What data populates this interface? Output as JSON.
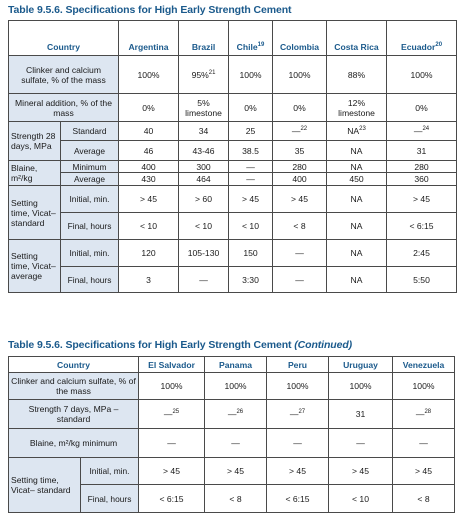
{
  "t1": {
    "title": "Table 9.5.6. Specifications for High Early Strength Cement",
    "country_label": "Country",
    "countries": [
      {
        "name": "Argentina",
        "sup": ""
      },
      {
        "name": "Brazil",
        "sup": ""
      },
      {
        "name": "Chile",
        "sup": "19"
      },
      {
        "name": "Colombia",
        "sup": ""
      },
      {
        "name": "Costa Rica",
        "sup": ""
      },
      {
        "name": "Ecuador",
        "sup": "20"
      }
    ],
    "rows": {
      "clinker": {
        "label": "Clinker and calcium sulfate, % of the mass",
        "values": [
          "100%",
          "95%",
          "100%",
          "100%",
          "88%",
          "100%"
        ],
        "brazil_sup": "21"
      },
      "mineral": {
        "label": "Mineral addition, % of the mass",
        "values": [
          "0%",
          "5% limestone",
          "0%",
          "0%",
          "12% limestone",
          "0%"
        ]
      },
      "strength": {
        "label": "Strength 28 days, MPa",
        "standard": {
          "label": "Standard",
          "values": [
            "40",
            "34",
            "25",
            "—",
            "NA",
            "—"
          ],
          "sups": [
            "",
            "",
            "",
            "22",
            "23",
            "24"
          ]
        },
        "average": {
          "label": "Average",
          "values": [
            "46",
            "43-46",
            "38.5",
            "35",
            "NA",
            "31"
          ]
        }
      },
      "blaine": {
        "label": "Blaine, m²/kg",
        "minimum": {
          "label": "Minimum",
          "values": [
            "400",
            "300",
            "—",
            "280",
            "NA",
            "280"
          ]
        },
        "average": {
          "label": "Average",
          "values": [
            "430",
            "464",
            "—",
            "400",
            "450",
            "360"
          ]
        }
      },
      "vicat_std": {
        "label": "Setting time, Vicat– standard",
        "initial": {
          "label": "Initial, min.",
          "values": [
            "> 45",
            "> 60",
            "> 45",
            "> 45",
            "NA",
            "> 45"
          ]
        },
        "final": {
          "label": "Final, hours",
          "values": [
            "< 10",
            "< 10",
            "< 10",
            "< 8",
            "NA",
            "< 6:15"
          ]
        }
      },
      "vicat_avg": {
        "label": "Setting time, Vicat– average",
        "initial": {
          "label": "Initial, min.",
          "values": [
            "120",
            "105-130",
            "150",
            "—",
            "NA",
            "2:45"
          ]
        },
        "final": {
          "label": "Final, hours",
          "values": [
            "3",
            "—",
            "3:30",
            "—",
            "NA",
            "5:50"
          ]
        }
      }
    }
  },
  "t2": {
    "title": "Table 9.5.6. Specifications for High Early Strength Cement",
    "title_cont": "(Continued)",
    "country_label": "Country",
    "countries": [
      "El Salvador",
      "Panama",
      "Peru",
      "Uruguay",
      "Venezuela"
    ],
    "rows": {
      "clinker": {
        "label": "Clinker and calcium sulfate, % of the mass",
        "values": [
          "100%",
          "100%",
          "100%",
          "100%",
          "100%"
        ]
      },
      "strength": {
        "label": "Strength 7 days, MPa – standard",
        "values": [
          "—",
          "—",
          "—",
          "31",
          "—"
        ],
        "sups": [
          "25",
          "26",
          "27",
          "",
          "28"
        ]
      },
      "blaine": {
        "label": "Blaine, m²/kg minimum",
        "values": [
          "—",
          "—",
          "—",
          "—",
          "—"
        ]
      },
      "setting": {
        "label": "Setting time, Vicat– standard",
        "initial": {
          "label": "Initial, min.",
          "values": [
            "> 45",
            "> 45",
            "> 45",
            "> 45",
            "> 45"
          ]
        },
        "final": {
          "label": "Final, hours",
          "values": [
            "< 6:15",
            "< 8",
            "< 6:15",
            "< 10",
            "< 8"
          ]
        }
      }
    }
  }
}
